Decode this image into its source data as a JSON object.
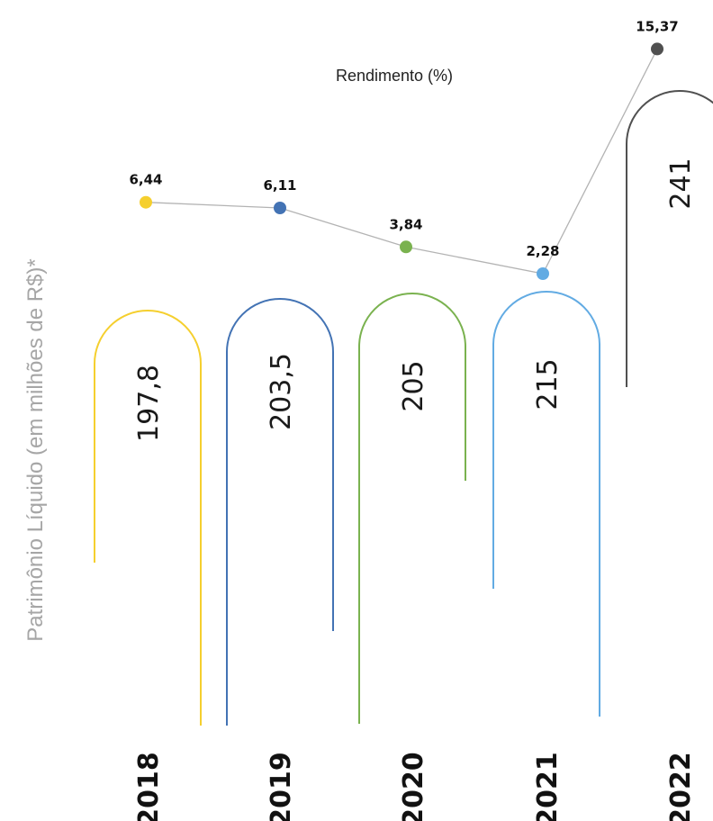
{
  "chart_data": {
    "type": "bar",
    "ylabel": "Patrimônio Líquido (em milhões de R$)*",
    "categories": [
      "2018",
      "2019",
      "2020",
      "2021",
      "2022"
    ],
    "series": [
      {
        "values": [
          197.8,
          203.5,
          205,
          215,
          241
        ],
        "labels": [
          "197,8",
          "203,5",
          "205",
          "215",
          "241"
        ]
      },
      {
        "name": "Rendimento (%)",
        "type": "line",
        "values": [
          6.44,
          6.11,
          3.84,
          2.28,
          15.37
        ],
        "labels": [
          "6,44",
          "6,11",
          "3,84",
          "2,28",
          "15,37"
        ]
      }
    ],
    "colors": [
      "#f5cf2e",
      "#4373b4",
      "#7ab24f",
      "#62abe3",
      "#505050"
    ],
    "line_color": "#b3b3b3"
  }
}
